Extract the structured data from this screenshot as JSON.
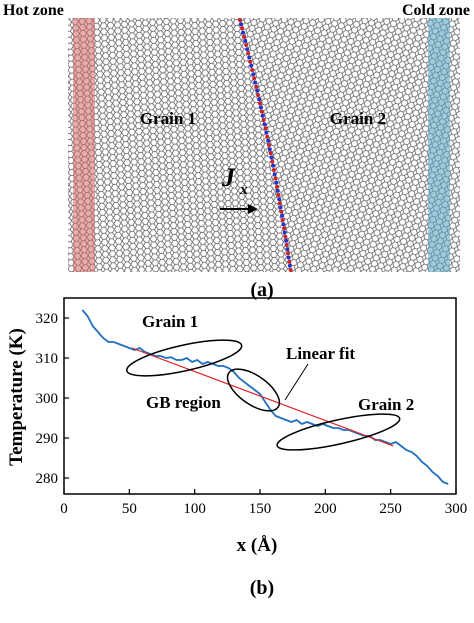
{
  "panel_a": {
    "hot_zone_label": "Hot zone",
    "cold_zone_label": "Cold zone",
    "grain1_label": "Grain 1",
    "grain2_label": "Grain 2",
    "flux_symbol": "J",
    "flux_subscript": "x",
    "caption": "(a)",
    "colors": {
      "lattice": "#555555",
      "hot_band": "#d46a6a",
      "cold_band": "#5fa8c4",
      "gb_red": "#cc2222",
      "gb_blue": "#2233cc"
    }
  },
  "panel_b": {
    "caption": "(b)",
    "annotations": {
      "grain1": "Grain 1",
      "grain2": "Grain 2",
      "gb_region": "GB region",
      "linear_fit": "Linear fit"
    }
  },
  "chart_data": {
    "type": "line",
    "xlabel": "x (Å)",
    "ylabel": "Temperature (K)",
    "xlim": [
      0,
      300
    ],
    "ylim": [
      276,
      325
    ],
    "xticks": [
      0,
      50,
      100,
      150,
      200,
      250,
      300
    ],
    "yticks": [
      280,
      290,
      300,
      310,
      320
    ],
    "grid": false,
    "series": [
      {
        "color": "#1f6fc0",
        "x": [
          14,
          18,
          22,
          26,
          30,
          34,
          38,
          42,
          46,
          50,
          54,
          58,
          62,
          66,
          70,
          74,
          78,
          82,
          86,
          90,
          94,
          98,
          102,
          106,
          110,
          114,
          118,
          122,
          126,
          130,
          134,
          138,
          142,
          146,
          150,
          154,
          158,
          162,
          166,
          170,
          174,
          178,
          182,
          186,
          190,
          194,
          198,
          202,
          206,
          210,
          214,
          218,
          222,
          226,
          230,
          234,
          238,
          242,
          246,
          250,
          254,
          258,
          262,
          266,
          270,
          274,
          278,
          282,
          286,
          290,
          294
        ],
        "y": [
          322,
          320.5,
          318,
          316.5,
          315,
          314,
          314,
          313.5,
          313,
          312.5,
          312,
          312.5,
          311.5,
          311,
          310.5,
          310.5,
          310,
          310.2,
          309.5,
          309.5,
          310,
          309,
          309.5,
          308.5,
          309,
          308.5,
          308,
          308,
          307.5,
          306.5,
          305,
          304,
          303,
          302,
          301,
          299,
          297,
          295.5,
          295,
          294.5,
          294,
          294.5,
          293.5,
          294,
          293.5,
          293,
          293.5,
          293,
          292.5,
          292.5,
          292,
          292,
          291.5,
          291,
          290.5,
          290.5,
          289.5,
          289.5,
          289,
          288.5,
          289,
          288,
          287,
          286.5,
          285.5,
          284,
          283,
          281.5,
          280.5,
          279,
          278.5
        ]
      },
      {
        "name": "Linear fit",
        "color": "#e02020",
        "x": [
          52,
          252
        ],
        "y": [
          312.5,
          288
        ]
      }
    ],
    "ellipses": [
      {
        "label": "Grain 1",
        "cx": 92,
        "cy": 310,
        "rx": 45,
        "ry": 3.2,
        "angle_deg": -5
      },
      {
        "label": "GB region",
        "cx": 145,
        "cy": 302,
        "rx": 11,
        "ry": 7.5,
        "angle_deg": -55
      },
      {
        "label": "Grain 2",
        "cx": 210,
        "cy": 291.5,
        "rx": 48,
        "ry": 3.0,
        "angle_deg": -5
      }
    ]
  }
}
